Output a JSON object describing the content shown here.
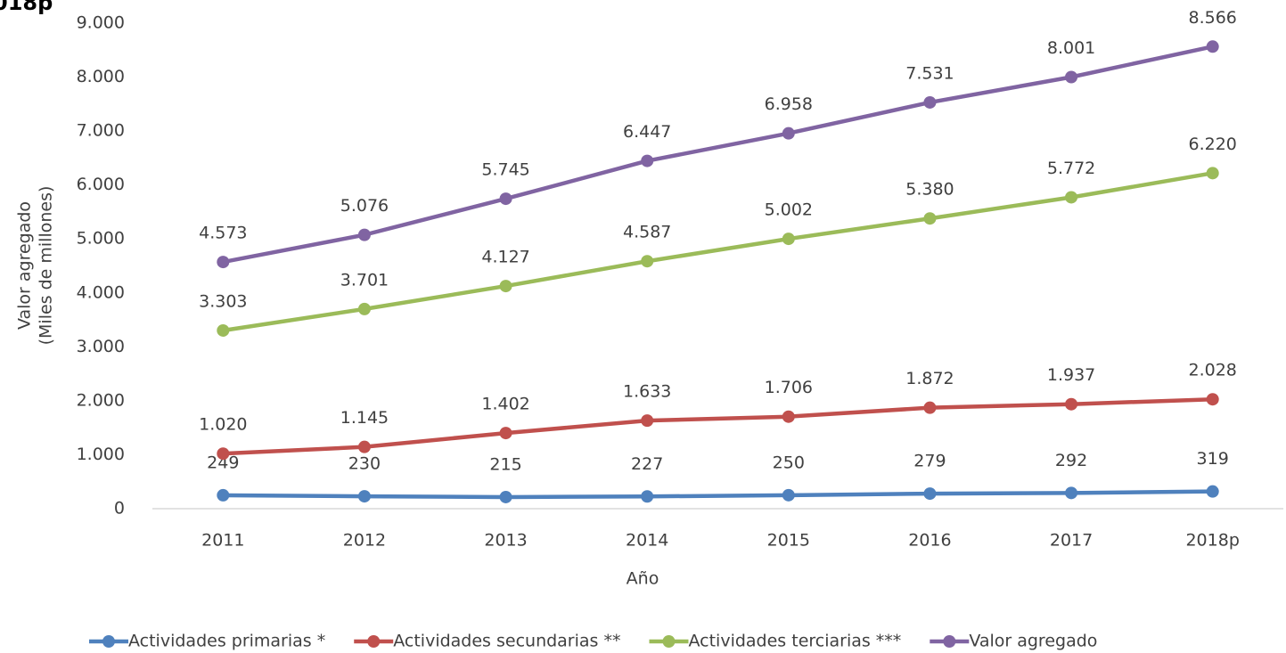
{
  "chart_data": {
    "type": "line",
    "title": "018p",
    "y_label": [
      "Valor agregado",
      "(Miles de millones)"
    ],
    "x_label": "Año",
    "categories": [
      "2011",
      "2012",
      "2013",
      "2014",
      "2015",
      "2016",
      "2017",
      "2018p"
    ],
    "ylim": [
      0,
      9000
    ],
    "yticks": [
      0,
      {
        "value": 1000,
        "label": "1.000"
      },
      {
        "value": 2000,
        "label": "2.000"
      },
      {
        "value": 3000,
        "label": "3.000"
      },
      {
        "value": 4000,
        "label": "4.000"
      },
      {
        "value": 5000,
        "label": "5.000"
      },
      {
        "value": 6000,
        "label": "6.000"
      },
      {
        "value": 7000,
        "label": "7.000"
      },
      {
        "value": 8000,
        "label": "8.000"
      },
      {
        "value": 9000,
        "label": "9.000"
      }
    ],
    "grid": false,
    "legend": "bottom",
    "series": [
      {
        "name": "Actividades primarias *",
        "color": "#4f81bd",
        "values": [
          249,
          230,
          215,
          227,
          250,
          279,
          292,
          319
        ],
        "value_labels": [
          "249",
          "230",
          "215",
          "227",
          "250",
          "279",
          "292",
          "319"
        ]
      },
      {
        "name": "Actividades secundarias **",
        "color": "#c0504d",
        "values": [
          1020,
          1145,
          1402,
          1633,
          1706,
          1872,
          1937,
          2028
        ],
        "value_labels": [
          "1.020",
          "1.145",
          "1.402",
          "1.633",
          "1.706",
          "1.872",
          "1.937",
          "2.028"
        ]
      },
      {
        "name": "Actividades terciarias ***",
        "color": "#9bbb59",
        "values": [
          3303,
          3701,
          4127,
          4587,
          5002,
          5380,
          5772,
          6220
        ],
        "value_labels": [
          "3.303",
          "3.701",
          "4.127",
          "4.587",
          "5.002",
          "5.380",
          "5.772",
          "6.220"
        ]
      },
      {
        "name": "Valor agregado",
        "color": "#8064a2",
        "values": [
          4573,
          5076,
          5745,
          6447,
          6958,
          7531,
          8001,
          8566
        ],
        "value_labels": [
          "4.573",
          "5.076",
          "5.745",
          "6.447",
          "6.958",
          "7.531",
          "8.001",
          "8.566"
        ]
      }
    ]
  }
}
